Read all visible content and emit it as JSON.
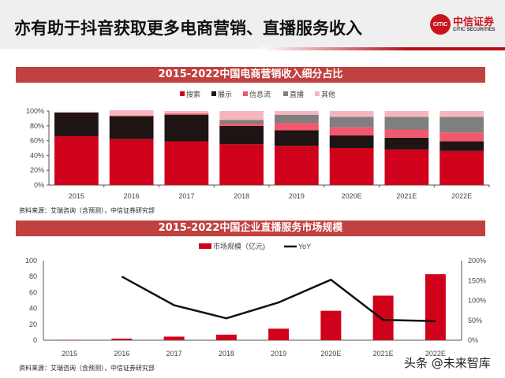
{
  "header": {
    "title": "亦有助于抖音获取更多电商营销、直播服务收入",
    "logo_text": "中信证券",
    "logo_sub": "CITIC SECURITIES",
    "logo_mark": "CITIC"
  },
  "colors": {
    "search": "#d0021b",
    "display": "#1e1414",
    "feed": "#f0596e",
    "live": "#7f7f7f",
    "other": "#f7b6bd",
    "bar": "#d0021b",
    "line": "#111111",
    "banner": "#c0413f"
  },
  "chart_data": [
    {
      "type": "bar",
      "stacked": true,
      "title": "2015-2022中国电商营销收入细分占比",
      "categories": [
        "2015",
        "2016",
        "2017",
        "2018",
        "2019",
        "2020E",
        "2021E",
        "2022E"
      ],
      "series": [
        {
          "name": "搜索",
          "values": [
            66,
            62,
            59,
            55,
            53,
            50,
            48,
            46
          ]
        },
        {
          "name": "展示",
          "values": [
            32,
            31,
            36,
            25,
            21,
            17,
            16,
            13
          ]
        },
        {
          "name": "信息流",
          "values": [
            0,
            1,
            2,
            3,
            10,
            11,
            11,
            12
          ]
        },
        {
          "name": "直播",
          "values": [
            0,
            0,
            0,
            5,
            11,
            14,
            17,
            21
          ]
        },
        {
          "name": "其他",
          "values": [
            1,
            7,
            3,
            12,
            5,
            8,
            8,
            8
          ]
        }
      ],
      "ylim": [
        0,
        100
      ],
      "yticks": [
        "0%",
        "20%",
        "40%",
        "60%",
        "80%",
        "100%"
      ],
      "legend": "top",
      "grid": false
    },
    {
      "type": "bar+line",
      "title": "2015-2022中国企业直播服务市场规模",
      "categories": [
        "2015",
        "2016",
        "2017",
        "2018",
        "2019",
        "2020E",
        "2021E",
        "2022E"
      ],
      "series": [
        {
          "name": "市场规模（亿元)",
          "type": "bar",
          "axis": "left",
          "values": [
            0.5,
            2,
            4.5,
            7,
            14.5,
            37,
            56,
            83
          ]
        },
        {
          "name": "YoY",
          "type": "line",
          "axis": "right",
          "values": [
            null,
            160,
            88,
            55,
            95,
            152,
            51,
            48
          ]
        }
      ],
      "ylim": [
        0,
        100
      ],
      "yticks": [
        "0",
        "20",
        "40",
        "60",
        "80",
        "100"
      ],
      "y2lim": [
        0,
        200
      ],
      "y2ticks": [
        "0%",
        "50%",
        "100%",
        "150%",
        "200%"
      ],
      "legend": "top",
      "grid": false
    }
  ],
  "source1": "资料来源：艾瑞咨询（含预测），中信证券研究部",
  "source2": "资料来源：艾瑞咨询（含预测），中信证券研究部",
  "watermark": "头条 @未来智库"
}
